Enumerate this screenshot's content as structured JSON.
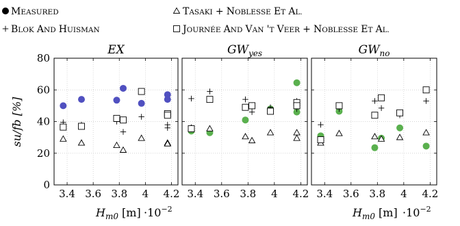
{
  "legend": {
    "measured": "Measured",
    "tasaki": "Tasaki + Noblesse et al.",
    "blok": "Blok and Huisman",
    "journee": "Journée and van 't Veer + Noblesse et al."
  },
  "colors": {
    "measured_ex": "#5050c0",
    "measured_gw": "#5ab04e",
    "ink": "#000000"
  },
  "axes": {
    "ylabel": "su/fb [%]",
    "xlabel": "H",
    "xlabel_sub": "m0",
    "xlabel_unit": " [m]",
    "x_scale_base": "·10",
    "x_scale_exp": "−2"
  },
  "chart_data": [
    {
      "type": "scatter",
      "title": "EX",
      "title_sub": "",
      "xlim": [
        3.3,
        4.25
      ],
      "ylim": [
        0,
        80
      ],
      "xticks": [
        "3.4",
        "3.6",
        "3.8",
        "4",
        "4.2"
      ],
      "xtick_values": [
        3.4,
        3.6,
        3.8,
        4.0,
        4.2
      ],
      "yticks": [
        "0",
        "20",
        "40",
        "60",
        "80"
      ],
      "ytick_values": [
        0,
        20,
        40,
        60,
        80
      ],
      "grid": true,
      "series": [
        {
          "key": "measured",
          "marker": "circle-filled",
          "color": "#5050c0",
          "points": [
            [
              3.37,
              50
            ],
            [
              3.51,
              54
            ],
            [
              3.78,
              53.5
            ],
            [
              3.83,
              61
            ],
            [
              3.97,
              51.5
            ],
            [
              4.17,
              57
            ],
            [
              4.17,
              54
            ]
          ]
        },
        {
          "key": "tasaki",
          "marker": "triangle-open",
          "points": [
            [
              3.37,
              29
            ],
            [
              3.51,
              26.5
            ],
            [
              3.78,
              25
            ],
            [
              3.83,
              22
            ],
            [
              3.97,
              29.5
            ],
            [
              4.17,
              26.5
            ],
            [
              4.17,
              26
            ]
          ]
        },
        {
          "key": "blok",
          "marker": "plus",
          "points": [
            [
              3.37,
              39.5
            ],
            [
              3.51,
              38
            ],
            [
              3.78,
              40
            ],
            [
              3.83,
              33.5
            ],
            [
              3.97,
              43
            ],
            [
              4.17,
              38
            ],
            [
              4.17,
              36
            ]
          ]
        },
        {
          "key": "journee",
          "marker": "square-open",
          "points": [
            [
              3.37,
              36.5
            ],
            [
              3.51,
              37
            ],
            [
              3.78,
              42
            ],
            [
              3.83,
              41
            ],
            [
              3.97,
              59
            ],
            [
              4.17,
              45
            ],
            [
              4.17,
              44
            ]
          ]
        }
      ]
    },
    {
      "type": "scatter",
      "title": "GW",
      "title_sub": "yes",
      "xlim": [
        3.3,
        4.25
      ],
      "ylim": [
        0,
        80
      ],
      "xticks": [
        "3.4",
        "3.6",
        "3.8",
        "4",
        "4.2"
      ],
      "xtick_values": [
        3.4,
        3.6,
        3.8,
        4.0,
        4.2
      ],
      "yticks": [],
      "ytick_values": [
        0,
        20,
        40,
        60,
        80
      ],
      "grid": true,
      "series": [
        {
          "key": "measured",
          "marker": "circle-filled",
          "color": "#5ab04e",
          "points": [
            [
              3.37,
              34
            ],
            [
              3.51,
              33
            ],
            [
              3.78,
              41
            ],
            [
              3.83,
              50
            ],
            [
              3.97,
              48
            ],
            [
              4.17,
              64.5
            ],
            [
              4.17,
              46
            ]
          ]
        },
        {
          "key": "tasaki",
          "marker": "triangle-open",
          "points": [
            [
              3.37,
              36
            ],
            [
              3.51,
              35.5
            ],
            [
              3.78,
              30.5
            ],
            [
              3.83,
              28
            ],
            [
              3.97,
              33
            ],
            [
              4.17,
              33
            ],
            [
              4.17,
              29.5
            ]
          ]
        },
        {
          "key": "blok",
          "marker": "plus",
          "points": [
            [
              3.37,
              54.5
            ],
            [
              3.51,
              59
            ],
            [
              3.78,
              54
            ],
            [
              3.83,
              46
            ],
            [
              3.97,
              49
            ],
            [
              4.17,
              53
            ],
            [
              4.17,
              48
            ]
          ]
        },
        {
          "key": "journee",
          "marker": "square-open",
          "points": [
            [
              3.37,
              35.5
            ],
            [
              3.51,
              54
            ],
            [
              3.78,
              49
            ],
            [
              3.83,
              50
            ],
            [
              3.97,
              46.5
            ],
            [
              4.17,
              52
            ],
            [
              4.17,
              50
            ]
          ]
        }
      ]
    },
    {
      "type": "scatter",
      "title": "GW",
      "title_sub": "no",
      "xlim": [
        3.3,
        4.25
      ],
      "ylim": [
        0,
        80
      ],
      "xticks": [
        "3.4",
        "3.6",
        "3.8",
        "4",
        "4.2"
      ],
      "xtick_values": [
        3.4,
        3.6,
        3.8,
        4.0,
        4.2
      ],
      "yticks": [],
      "ytick_values": [
        0,
        20,
        40,
        60,
        80
      ],
      "grid": true,
      "series": [
        {
          "key": "measured",
          "marker": "circle-filled",
          "color": "#5ab04e",
          "points": [
            [
              3.37,
              31
            ],
            [
              3.51,
              46.5
            ],
            [
              3.78,
              23.5
            ],
            [
              3.83,
              29.5
            ],
            [
              3.97,
              36
            ],
            [
              4.17,
              24.5
            ]
          ]
        },
        {
          "key": "tasaki",
          "marker": "triangle-open",
          "points": [
            [
              3.37,
              26.5
            ],
            [
              3.51,
              32.5
            ],
            [
              3.78,
              30.5
            ],
            [
              3.83,
              29
            ],
            [
              3.97,
              30
            ],
            [
              4.17,
              33
            ]
          ]
        },
        {
          "key": "blok",
          "marker": "plus",
          "points": [
            [
              3.37,
              38
            ],
            [
              3.51,
              48
            ],
            [
              3.78,
              53
            ],
            [
              3.83,
              48.5
            ],
            [
              3.97,
              44
            ],
            [
              4.17,
              53
            ]
          ]
        },
        {
          "key": "journee",
          "marker": "square-open",
          "points": [
            [
              3.37,
              28.5
            ],
            [
              3.51,
              50
            ],
            [
              3.78,
              44
            ],
            [
              3.83,
              55
            ],
            [
              3.97,
              45.5
            ],
            [
              4.17,
              60
            ]
          ]
        }
      ]
    }
  ]
}
